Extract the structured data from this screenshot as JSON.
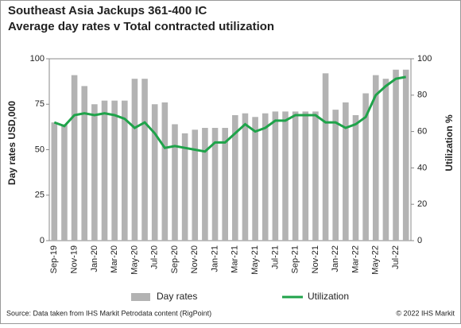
{
  "chart_data": {
    "type": "bar_line",
    "title": "Southeast Asia Jackups 361-400 IC",
    "subtitle": "Average day rates v Total contracted utilization",
    "y_label": "Day rates USD,000",
    "y2_label": "Utilization %",
    "source": "Source:  Data taken  from IHS Markit Petrodata content (RigPoint)",
    "copyright": "© 2022  IHS Markit",
    "categories": [
      "Sep-19",
      null,
      "Nov-19",
      null,
      "Jan-20",
      null,
      "Mar-20",
      null,
      "May-20",
      null,
      "Jul-20",
      null,
      "Sep-20",
      null,
      "Nov-20",
      null,
      "Jan-21",
      null,
      "Mar-21",
      null,
      "May-21",
      null,
      "Jul-21",
      null,
      "Sep-21",
      null,
      "Nov-21",
      null,
      "Jan-22",
      null,
      "Mar-22",
      null,
      "May-22",
      null,
      "Jul-22",
      null
    ],
    "series": [
      {
        "name": "Day rates",
        "color": "#b3b3b3",
        "axis": "y",
        "values": [
          65,
          64,
          91,
          85,
          75,
          77,
          77,
          77,
          89,
          89,
          75,
          76,
          64,
          59,
          61,
          62,
          62,
          62,
          69,
          70,
          68,
          70,
          71,
          71,
          71,
          71,
          71,
          92,
          72,
          76,
          69,
          81,
          91,
          89,
          94,
          94
        ]
      },
      {
        "name": "Utilization",
        "color": "#1fa34a",
        "axis": "y2",
        "values": [
          65,
          63,
          69,
          70,
          69,
          70,
          69,
          67,
          62,
          65,
          59,
          51,
          52,
          51,
          50,
          49,
          54,
          54,
          59,
          64,
          60,
          62,
          66,
          66,
          69,
          69,
          69,
          65,
          65,
          62,
          64,
          68,
          80,
          85,
          89,
          90
        ]
      }
    ],
    "ylim": [
      0,
      100
    ],
    "yticks": [
      0,
      25,
      50,
      75,
      100
    ],
    "y2lim": [
      0,
      100
    ],
    "y2ticks": [
      0,
      20,
      40,
      60,
      80,
      100
    ]
  }
}
